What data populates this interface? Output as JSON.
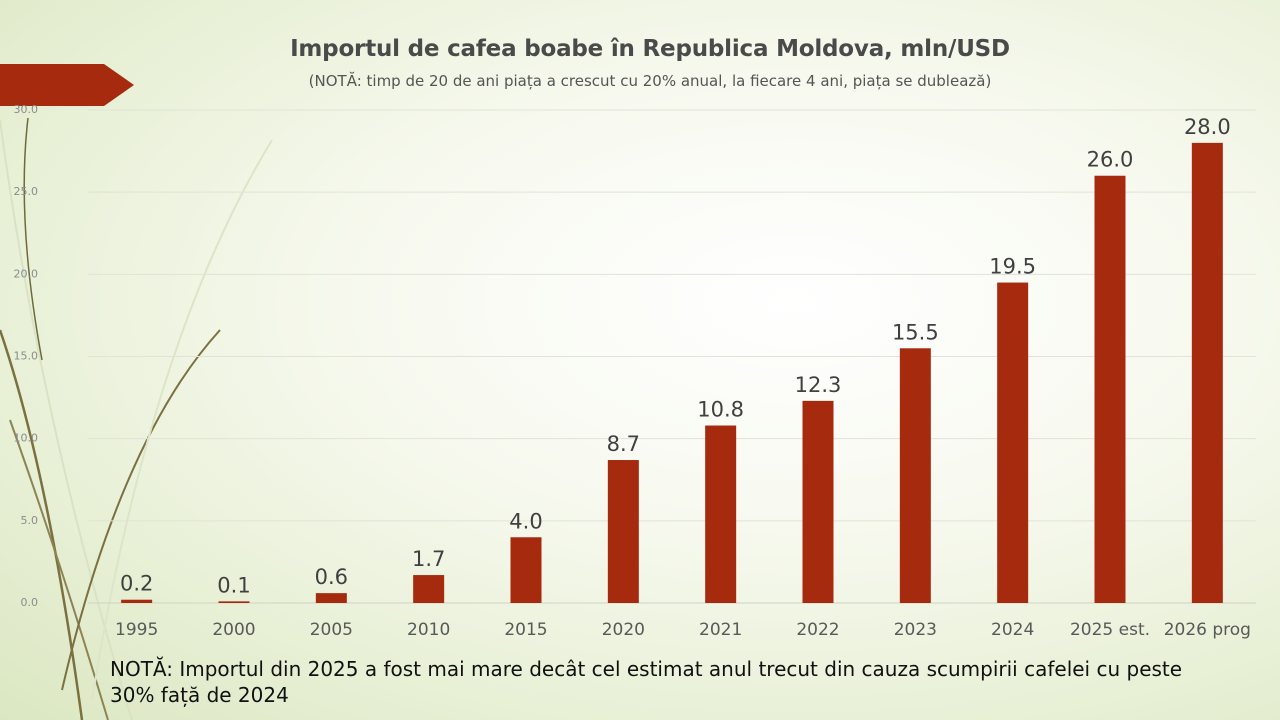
{
  "chart_data": {
    "type": "bar",
    "title": "Importul de cafea boabe în Republica Moldova, mln/USD",
    "subtitle": "(NOTĂ: timp de 20 de ani piața a crescut cu 20% anual, la fiecare 4 ani, piața se dublează)",
    "categories": [
      "1995",
      "2000",
      "2005",
      "2010",
      "2015",
      "2020",
      "2021",
      "2022",
      "2023",
      "2024",
      "2025 est.",
      "2026 prog"
    ],
    "values": [
      0.2,
      0.1,
      0.6,
      1.7,
      4.0,
      8.7,
      10.8,
      12.3,
      15.5,
      19.5,
      26.0,
      28.0
    ],
    "value_labels": [
      "0.2",
      "0.1",
      "0.6",
      "1.7",
      "4.0",
      "8.7",
      "10.8",
      "12.3",
      "15.5",
      "19.5",
      "26.0",
      "28.0"
    ],
    "yticks": [
      "0.0",
      "5.0",
      "10.0",
      "15.0",
      "20.0",
      "25.0",
      "30.0"
    ],
    "ylim": [
      0,
      30
    ],
    "xlabel": "",
    "ylabel": "",
    "grid": true,
    "bar_color": "#a52a0e"
  },
  "note": "NOTĂ: Importul din 2025 a fost mai mare decât cel estimat anul trecut din cauza scumpirii cafelei cu peste 30% față de 2024",
  "colors": {
    "accent": "#a52a0e",
    "decor_line": "#6e6a3c"
  }
}
